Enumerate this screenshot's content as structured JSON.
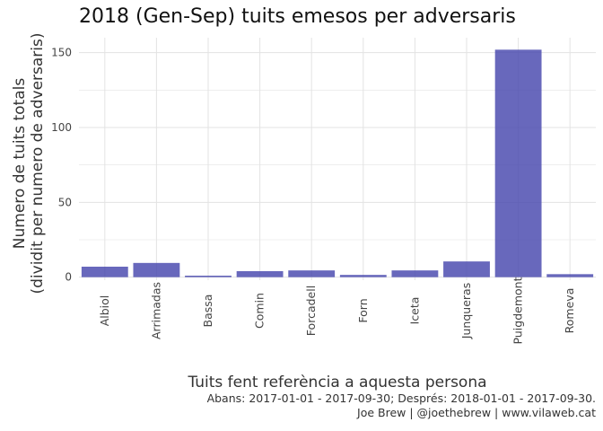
{
  "chart_data": {
    "type": "bar",
    "title": "2018 (Gen-Sep) tuits emesos per adversaris",
    "xlabel": "Tuits fent referència a aquesta persona",
    "ylabel_line1": "Numero de tuits totals",
    "ylabel_line2": "(dividit per numero de adversaris)",
    "categories": [
      "Albiol",
      "Arrimadas",
      "Bassa",
      "Comin",
      "Forcadell",
      "Forn",
      "Iceta",
      "Junqueras",
      "Puigdemont",
      "Romeva"
    ],
    "values": [
      7,
      9.5,
      1,
      4,
      4.5,
      1.5,
      4.5,
      10.5,
      152,
      2
    ],
    "ylim": [
      -2,
      160
    ],
    "yticks": [
      0,
      50,
      100,
      150
    ],
    "grid": true,
    "bar_color": "#4747ad",
    "caption_line1": "Abans: 2017-01-01 - 2017-09-30; Després: 2018-01-01 - 2017-09-30.",
    "caption_line2": "Joe Brew | @joethebrew | www.vilaweb.cat"
  }
}
